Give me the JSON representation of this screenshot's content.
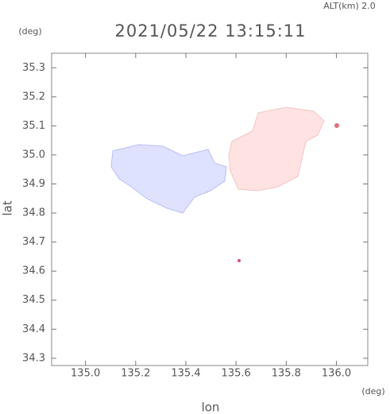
{
  "chart_data": {
    "type": "map",
    "title": "2021/05/22 13:15:11",
    "altitude_label": "ALT(km)  2.0",
    "x_label": "lon",
    "y_label": "lat",
    "x_unit": "(deg)",
    "y_unit": "(deg)",
    "xlim": [
      134.865,
      136.125
    ],
    "ylim": [
      34.275,
      35.35
    ],
    "xticks": [
      {
        "value": 135,
        "label": "135.0"
      },
      135.2,
      135.4,
      135.6,
      135.8,
      {
        "value": 136,
        "label": "136.0"
      }
    ],
    "yticks": [
      34.3,
      34.4,
      34.5,
      34.6,
      34.7,
      34.8,
      34.9,
      {
        "value": 35,
        "label": "35.0"
      },
      35.1,
      35.2,
      35.3
    ]
  }
}
